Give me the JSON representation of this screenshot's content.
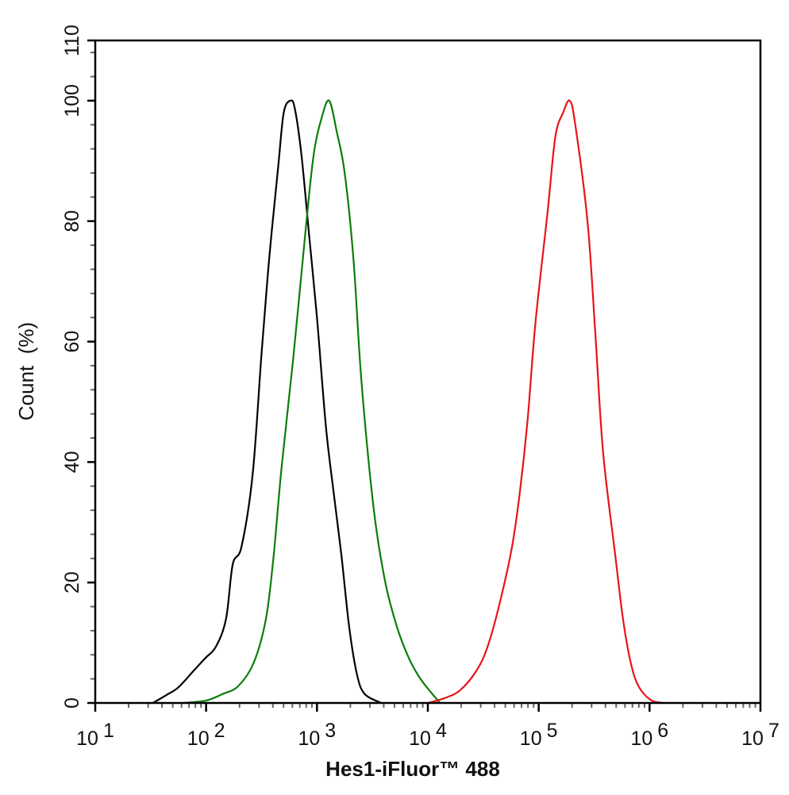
{
  "chart_data": {
    "type": "line",
    "title": "",
    "xlabel": "Hes1-iFluor™ 488",
    "ylabel": "Count  (%)",
    "xscale": "log",
    "xlim_log10": [
      1,
      7
    ],
    "ylim": [
      0,
      110
    ],
    "x_tick_labels": [
      {
        "base": "10",
        "exp": "1",
        "log": 1
      },
      {
        "base": "10",
        "exp": "2",
        "log": 2
      },
      {
        "base": "10",
        "exp": "3",
        "log": 3
      },
      {
        "base": "10",
        "exp": "4",
        "log": 4
      },
      {
        "base": "10",
        "exp": "5",
        "log": 5
      },
      {
        "base": "10",
        "exp": "6",
        "log": 6
      },
      {
        "base": "10",
        "exp": "7",
        "log": 7
      }
    ],
    "y_ticks": [
      0,
      20,
      40,
      60,
      80,
      100,
      110
    ],
    "y_tick_labels": [
      "0",
      "20",
      "40",
      "60",
      "80",
      "100",
      "110"
    ],
    "grid": false,
    "series": [
      {
        "name": "black",
        "color": "#000000",
        "log_x": [
          1.52,
          1.64,
          1.75,
          1.89,
          1.99,
          2.09,
          2.18,
          2.24,
          2.32,
          2.42,
          2.5,
          2.57,
          2.65,
          2.7,
          2.76,
          2.8,
          2.86,
          2.93,
          3.0,
          3.08,
          3.15,
          3.22,
          3.29,
          3.36,
          3.43,
          3.58
        ],
        "y": [
          0,
          1.3,
          2.6,
          5.4,
          7.4,
          9.4,
          14,
          23,
          26,
          38,
          58,
          74,
          89,
          98,
          100,
          98.7,
          91,
          77.5,
          64,
          46,
          35,
          24.6,
          12.7,
          4.8,
          1.5,
          0
        ]
      },
      {
        "name": "green",
        "color": "#0b7d0b",
        "log_x": [
          1.79,
          2.0,
          2.15,
          2.29,
          2.43,
          2.54,
          2.61,
          2.68,
          2.79,
          2.9,
          2.97,
          3.04,
          3.11,
          3.18,
          3.25,
          3.33,
          3.4,
          3.51,
          3.61,
          3.72,
          3.83,
          3.93,
          4.04,
          4.11
        ],
        "y": [
          0,
          0.4,
          1.5,
          2.8,
          6.7,
          14,
          24.6,
          39,
          58,
          79,
          91,
          97,
          100,
          94.7,
          88,
          73.5,
          53.7,
          32.5,
          20.6,
          12.7,
          7.4,
          4.1,
          1.5,
          0
        ]
      },
      {
        "name": "red",
        "color": "#e8141a",
        "log_x": [
          4.0,
          4.15,
          4.29,
          4.44,
          4.54,
          4.65,
          4.76,
          4.83,
          4.9,
          4.97,
          5.08,
          5.15,
          5.22,
          5.28,
          5.33,
          5.44,
          5.51,
          5.58,
          5.69,
          5.76,
          5.83,
          5.9,
          6.01,
          6.12
        ],
        "y": [
          0,
          0.8,
          2.1,
          5.4,
          9.4,
          16.7,
          26,
          35,
          47,
          63,
          81.5,
          94,
          98,
          100,
          96,
          80,
          61.6,
          41.8,
          24.6,
          14,
          6.7,
          2.8,
          0.5,
          0
        ]
      }
    ]
  }
}
